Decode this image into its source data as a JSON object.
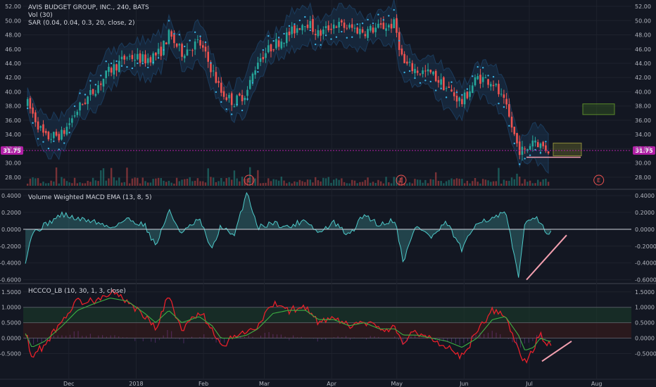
{
  "legend": {
    "line1": "AVIS BUDGET GROUP, INC., 240, BATS",
    "line2": "Vol (30)",
    "line3": "SAR (0.04, 0.04, 0.3, 20, close, 2)",
    "pane2": "Volume Weighted MACD EMA (13, 8, 5)",
    "pane3": "HCCCO_LB (10, 30, 1, 3, close)"
  },
  "colors": {
    "background": "#131722",
    "up": "#26a69a",
    "down": "#ef5350",
    "sar": "#3bb3e4",
    "band": "#1f4e79",
    "macd": "#4ec9c9",
    "hccco_fast": "#e8202a",
    "hccco_slow": "#3cb043",
    "trendline": "#f4a0b0",
    "price_tag": "#b11fa6"
  },
  "chart_data": [
    {
      "type": "candlestick",
      "title": "AVIS BUDGET GROUP, INC., 240, BATS",
      "price_scale": [
        "52.00",
        "50.00",
        "48.00",
        "46.00",
        "44.00",
        "42.00",
        "40.00",
        "38.00",
        "36.00",
        "34.00",
        "32.00",
        "30.00",
        "28.00"
      ],
      "price_values": [
        52,
        50,
        48,
        46,
        44,
        42,
        40,
        38,
        36,
        34,
        32,
        30,
        28
      ],
      "ylim": [
        26.8,
        52.5
      ],
      "last_price_label": "31.75",
      "last_price": 31.75,
      "earnings_markers": [
        "E",
        "E",
        "E"
      ],
      "earnings_dates": [
        "2018-02-22",
        "2018-05-03",
        "2018-08-02"
      ],
      "price_path_dates": [
        "2017-11-10",
        "2017-11-20",
        "2017-11-28",
        "2017-12-05",
        "2017-12-12",
        "2017-12-20",
        "2017-12-28",
        "2018-01-05",
        "2018-01-12",
        "2018-01-16",
        "2018-01-22",
        "2018-01-30",
        "2018-02-05",
        "2018-02-09",
        "2018-02-15",
        "2018-02-21",
        "2018-02-26",
        "2018-03-05",
        "2018-03-12",
        "2018-03-20",
        "2018-03-26",
        "2018-04-02",
        "2018-04-09",
        "2018-04-16",
        "2018-04-23",
        "2018-04-30",
        "2018-05-04",
        "2018-05-10",
        "2018-05-17",
        "2018-05-24",
        "2018-05-31",
        "2018-06-07",
        "2018-06-14",
        "2018-06-20",
        "2018-06-26",
        "2018-06-29",
        "2018-07-03",
        "2018-07-06",
        "2018-07-10"
      ],
      "price_path": [
        39.5,
        33.5,
        34.0,
        37.5,
        40.0,
        43.0,
        45.0,
        44.5,
        45.5,
        48.0,
        45.5,
        47.0,
        43.0,
        40.0,
        38.5,
        40.0,
        44.5,
        46.5,
        48.0,
        50.0,
        48.0,
        49.5,
        49.0,
        48.5,
        49.0,
        49.5,
        44.0,
        43.0,
        42.5,
        40.5,
        38.5,
        42.0,
        41.5,
        38.0,
        32.0,
        31.5,
        33.5,
        32.5,
        31.8
      ],
      "annotation_box_1": [
        36.8,
        38.3
      ],
      "annotation_box_2": [
        31.0,
        32.8
      ]
    },
    {
      "type": "area",
      "title": "Volume Weighted MACD EMA (13, 8, 5)",
      "scale": [
        "0.4000",
        "0.2000",
        "0.0000",
        "-0.2000",
        "-0.4000",
        "-0.6000"
      ],
      "scale_values": [
        0.4,
        0.2,
        0,
        -0.2,
        -0.4,
        -0.6
      ],
      "ylim": [
        -0.62,
        0.45
      ],
      "dates": [
        "2017-11-10",
        "2017-11-14",
        "2017-11-20",
        "2017-11-28",
        "2017-12-05",
        "2017-12-12",
        "2017-12-20",
        "2017-12-28",
        "2018-01-05",
        "2018-01-10",
        "2018-01-16",
        "2018-01-22",
        "2018-01-30",
        "2018-02-05",
        "2018-02-09",
        "2018-02-15",
        "2018-02-21",
        "2018-02-26",
        "2018-03-05",
        "2018-03-12",
        "2018-03-20",
        "2018-03-26",
        "2018-04-02",
        "2018-04-09",
        "2018-04-16",
        "2018-04-23",
        "2018-04-30",
        "2018-05-04",
        "2018-05-10",
        "2018-05-17",
        "2018-05-24",
        "2018-05-31",
        "2018-06-07",
        "2018-06-14",
        "2018-06-20",
        "2018-06-26",
        "2018-06-29",
        "2018-07-03",
        "2018-07-06",
        "2018-07-10"
      ],
      "values": [
        -0.48,
        -0.05,
        0.05,
        0.18,
        0.12,
        0.1,
        0.02,
        0.12,
        0.05,
        -0.2,
        0.22,
        -0.05,
        0.12,
        -0.25,
        0.05,
        -0.1,
        0.45,
        0.02,
        0.08,
        0.02,
        0.12,
        -0.05,
        0.08,
        -0.08,
        0.18,
        0.05,
        0.12,
        -0.38,
        0.05,
        -0.1,
        0.08,
        -0.25,
        0.1,
        0.12,
        0.2,
        -0.55,
        0.05,
        0.18,
        0.05,
        -0.05
      ],
      "trendline_y": [
        -0.6,
        -0.07
      ]
    },
    {
      "type": "line",
      "title": "HCCCO_LB (10, 30, 1, 3, close)",
      "scale": [
        "1.5000",
        "1.0000",
        "0.5000",
        "0.0000",
        "-0.5000"
      ],
      "scale_values": [
        1.5,
        1.0,
        0.5,
        0,
        -0.5
      ],
      "ylim": [
        -0.9,
        1.7
      ],
      "levels": [
        1.0,
        0.5,
        0.0
      ],
      "dates": [
        "2017-11-10",
        "2017-11-14",
        "2017-11-20",
        "2017-11-28",
        "2017-12-05",
        "2017-12-12",
        "2017-12-20",
        "2017-12-28",
        "2018-01-05",
        "2018-01-10",
        "2018-01-16",
        "2018-01-22",
        "2018-01-30",
        "2018-02-05",
        "2018-02-09",
        "2018-02-15",
        "2018-02-21",
        "2018-02-26",
        "2018-03-05",
        "2018-03-12",
        "2018-03-20",
        "2018-03-26",
        "2018-04-02",
        "2018-04-09",
        "2018-04-16",
        "2018-04-23",
        "2018-04-30",
        "2018-05-04",
        "2018-05-10",
        "2018-05-17",
        "2018-05-24",
        "2018-05-31",
        "2018-06-07",
        "2018-06-14",
        "2018-06-20",
        "2018-06-26",
        "2018-06-29",
        "2018-07-03",
        "2018-07-06",
        "2018-07-10"
      ],
      "series": [
        {
          "values": [
            0.5,
            -0.6,
            -0.2,
            0.6,
            1.2,
            1.2,
            1.5,
            1.2,
            0.7,
            0.3,
            1.4,
            0.2,
            0.9,
            0.3,
            -0.3,
            0.1,
            0.2,
            0.4,
            1.1,
            0.9,
            1.0,
            0.5,
            0.6,
            0.4,
            0.5,
            0.3,
            0.3,
            -0.1,
            0.2,
            0.0,
            -0.3,
            -0.6,
            0.2,
            0.9,
            0.7,
            -0.4,
            -0.8,
            -0.3,
            0.1,
            -0.2
          ]
        },
        {
          "values": [
            0.3,
            -0.3,
            -0.1,
            0.4,
            0.9,
            1.1,
            1.3,
            1.2,
            0.8,
            0.5,
            0.9,
            0.5,
            0.7,
            0.4,
            0.0,
            0.0,
            0.1,
            0.3,
            0.8,
            0.9,
            0.9,
            0.6,
            0.6,
            0.4,
            0.5,
            0.3,
            0.3,
            0.1,
            0.1,
            0.0,
            -0.1,
            -0.3,
            0.0,
            0.6,
            0.7,
            0.1,
            -0.4,
            -0.3,
            0.0,
            -0.1
          ]
        }
      ],
      "trendline_y": [
        -0.75,
        -0.1
      ]
    }
  ],
  "x_axis": {
    "labels": [
      "Dec",
      "2018",
      "Feb",
      "Mar",
      "Apr",
      "May",
      "Jun",
      "Jul",
      "Aug"
    ],
    "dates": [
      "2017-12-01",
      "2018-01-01",
      "2018-02-01",
      "2018-03-01",
      "2018-04-01",
      "2018-05-01",
      "2018-06-01",
      "2018-07-01",
      "2018-08-01"
    ],
    "range": [
      "2017-11-10",
      "2018-08-17"
    ]
  }
}
